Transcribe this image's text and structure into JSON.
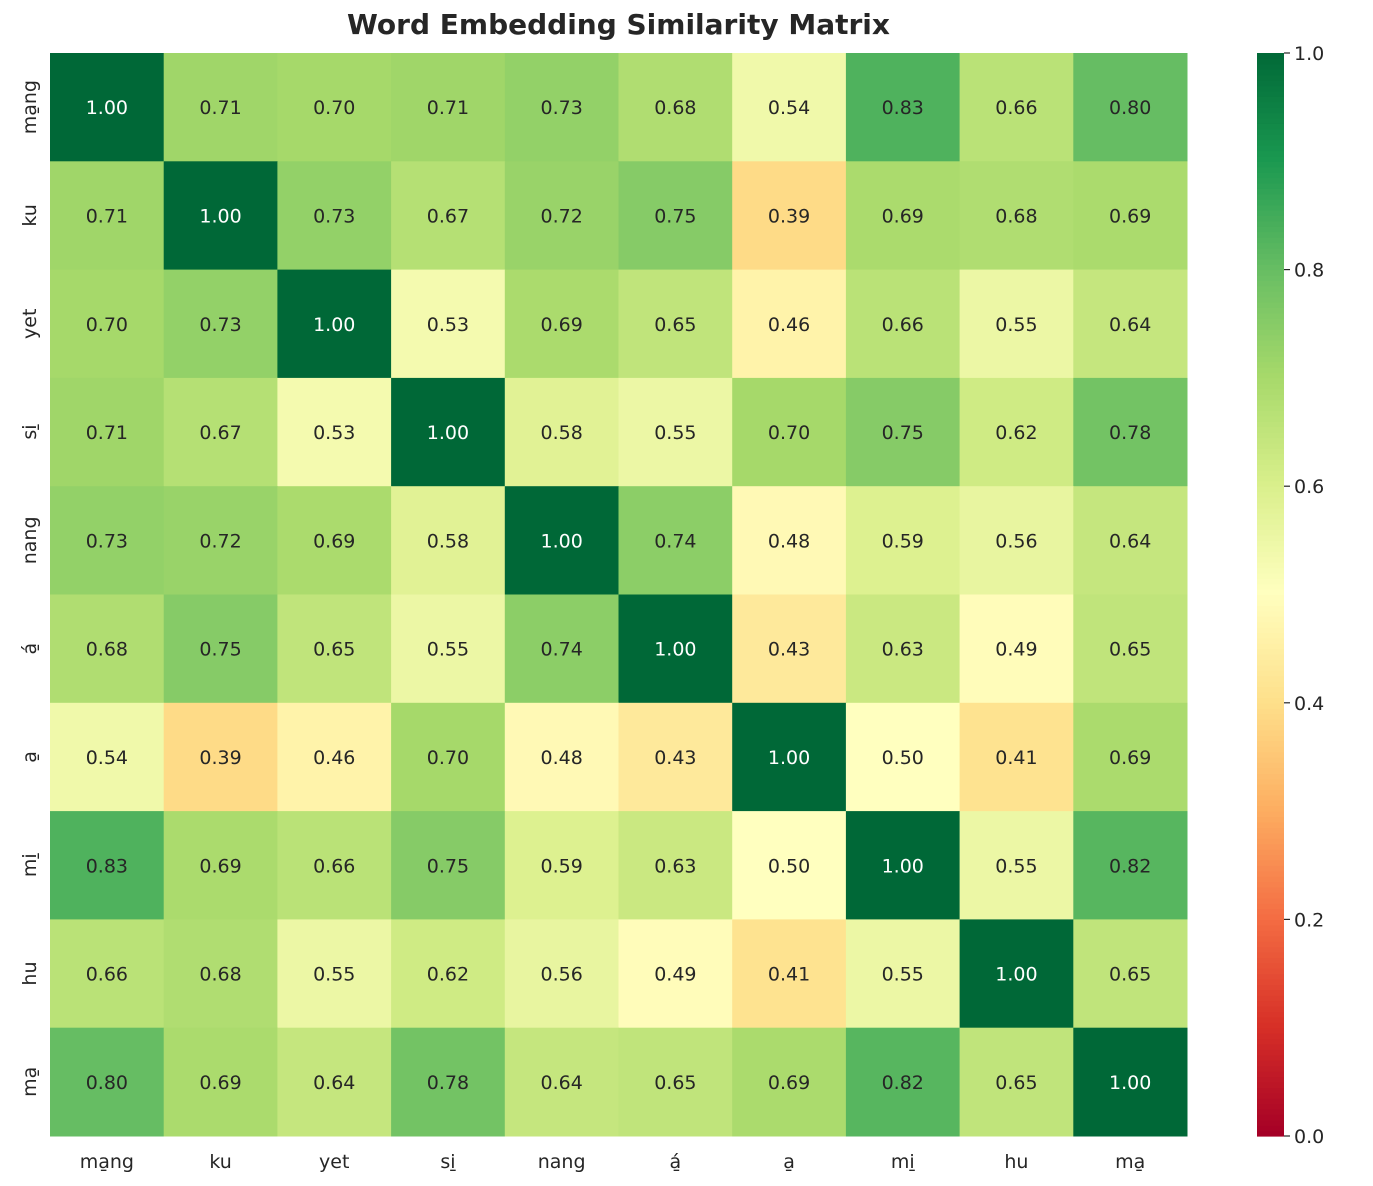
{
  "chart_data": {
    "type": "heatmap",
    "title": "Word Embedding Similarity Matrix",
    "x_labels": [
      "ma̱ng",
      "ku",
      "yet",
      "si̱",
      "nang",
      "á̱",
      "a̱",
      "mi̱",
      "hu",
      "ma̱"
    ],
    "y_labels": [
      "ma̱ng",
      "ku",
      "yet",
      "si̱",
      "nang",
      "á̱",
      "a̱",
      "mi̱",
      "hu",
      "ma̱"
    ],
    "values": [
      [
        1.0,
        0.71,
        0.7,
        0.71,
        0.73,
        0.68,
        0.54,
        0.83,
        0.66,
        0.8
      ],
      [
        0.71,
        1.0,
        0.73,
        0.67,
        0.72,
        0.75,
        0.39,
        0.69,
        0.68,
        0.69
      ],
      [
        0.7,
        0.73,
        1.0,
        0.53,
        0.69,
        0.65,
        0.46,
        0.66,
        0.55,
        0.64
      ],
      [
        0.71,
        0.67,
        0.53,
        1.0,
        0.58,
        0.55,
        0.7,
        0.75,
        0.62,
        0.78
      ],
      [
        0.73,
        0.72,
        0.69,
        0.58,
        1.0,
        0.74,
        0.48,
        0.59,
        0.56,
        0.64
      ],
      [
        0.68,
        0.75,
        0.65,
        0.55,
        0.74,
        1.0,
        0.43,
        0.63,
        0.49,
        0.65
      ],
      [
        0.54,
        0.39,
        0.46,
        0.7,
        0.48,
        0.43,
        1.0,
        0.5,
        0.41,
        0.69
      ],
      [
        0.83,
        0.69,
        0.66,
        0.75,
        0.59,
        0.63,
        0.5,
        1.0,
        0.55,
        0.82
      ],
      [
        0.66,
        0.68,
        0.55,
        0.62,
        0.56,
        0.49,
        0.41,
        0.55,
        1.0,
        0.65
      ],
      [
        0.8,
        0.69,
        0.64,
        0.78,
        0.64,
        0.65,
        0.69,
        0.82,
        0.65,
        1.0
      ]
    ],
    "colormap": "RdYlGn",
    "vmin": 0.0,
    "vmax": 1.0,
    "colorbar_ticks": [
      "0.0",
      "0.2",
      "0.4",
      "0.6",
      "0.8",
      "1.0"
    ],
    "annotation_format": "0.00"
  }
}
